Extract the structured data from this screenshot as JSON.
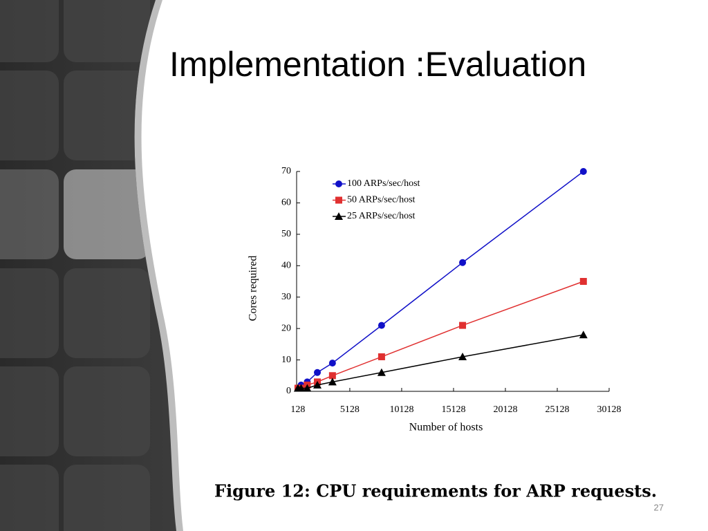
{
  "slide": {
    "title": "Implementation :Evaluation",
    "caption": "Figure 12: CPU requirements for ARP requests.",
    "page_number": "27"
  },
  "chart_data": {
    "type": "line",
    "x_label": "Number of hosts",
    "y_label": "Cores required",
    "x": [
      128,
      432,
      1024,
      2000,
      3456,
      8192,
      16000,
      27648
    ],
    "series": [
      {
        "name": "100 ARPs/sec/host",
        "color": "#1010c8",
        "marker": "circle",
        "values": [
          1,
          2,
          3,
          6,
          9,
          21,
          41,
          70
        ]
      },
      {
        "name": "50 ARPs/sec/host",
        "color": "#e03030",
        "marker": "square",
        "values": [
          1,
          1,
          2,
          3,
          5,
          11,
          21,
          35
        ]
      },
      {
        "name": "25 ARPs/sec/host",
        "color": "#000000",
        "marker": "triangle",
        "values": [
          1,
          1,
          1,
          2,
          3,
          6,
          11,
          18
        ]
      }
    ],
    "xlim": [
      0,
      30128
    ],
    "xticks": [
      128,
      5128,
      10128,
      15128,
      20128,
      25128,
      30128
    ],
    "ylim": [
      0,
      70
    ],
    "yticks": [
      0,
      10,
      20,
      30,
      40,
      50,
      60,
      70
    ],
    "legend": "upper left",
    "grid": false
  }
}
